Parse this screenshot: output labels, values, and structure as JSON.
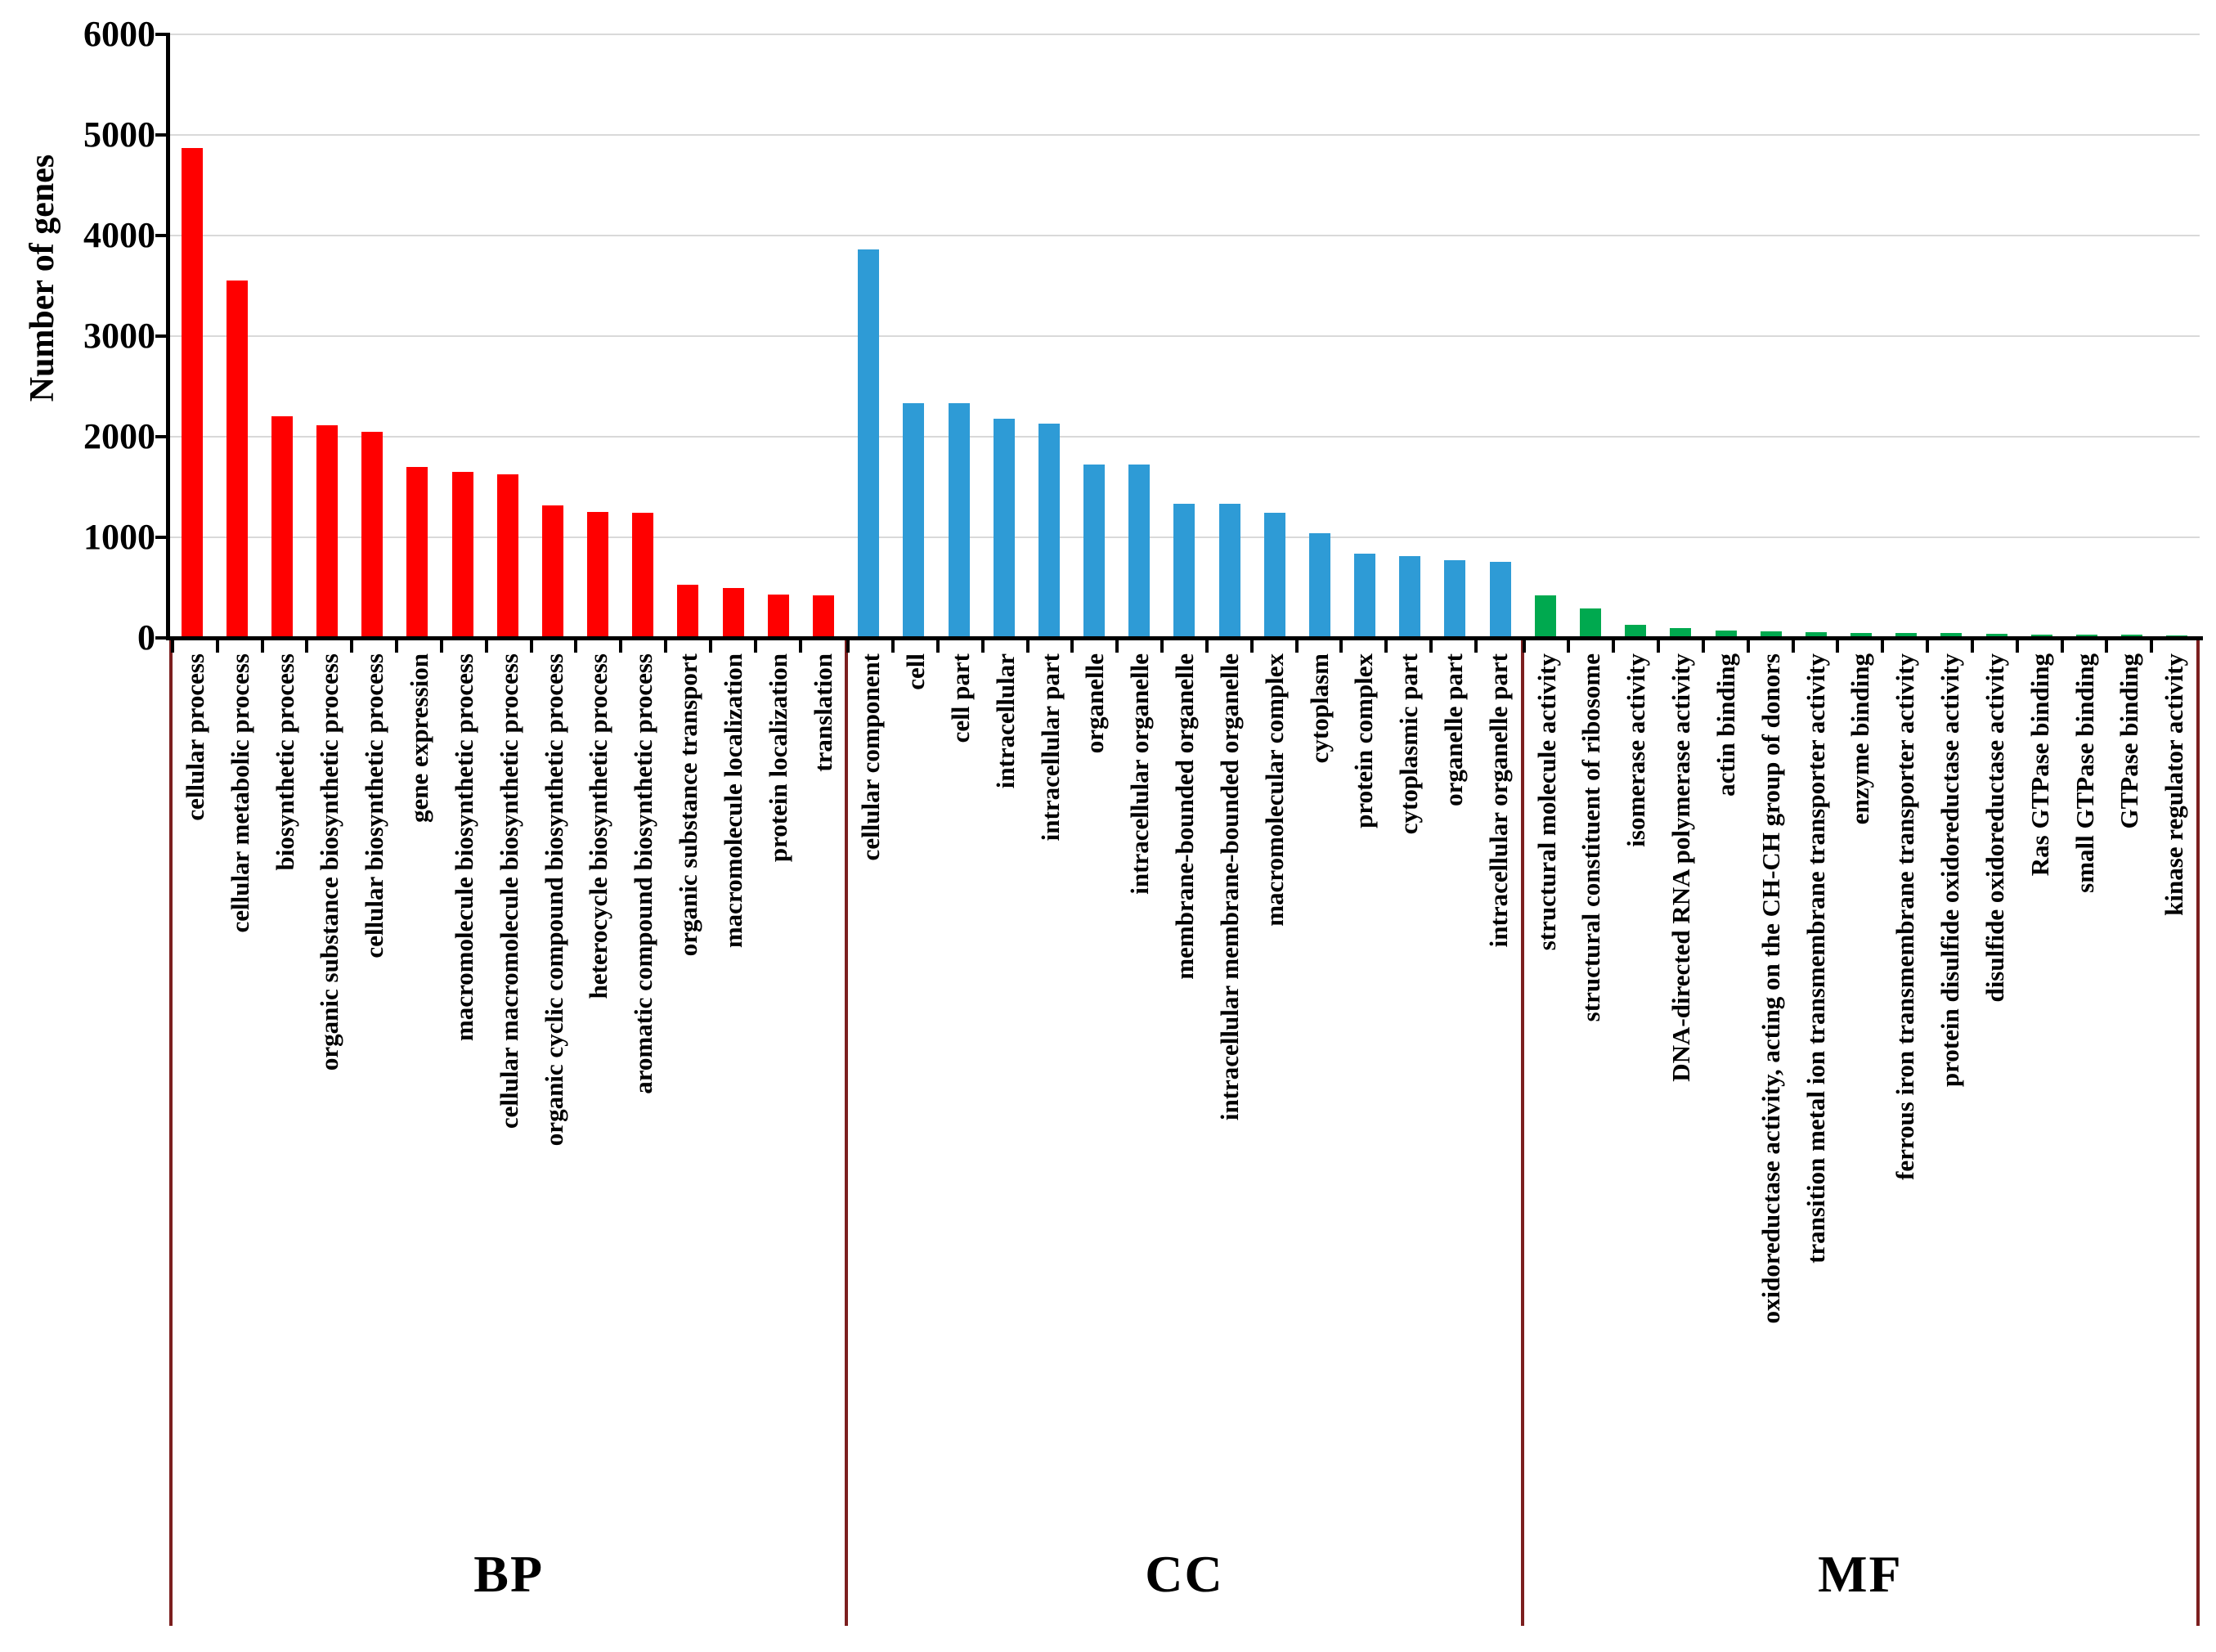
{
  "y_axis": {
    "label": "Number of genes",
    "ticks": [
      "6000",
      "5000",
      "4000",
      "3000",
      "2000",
      "1000",
      "0"
    ]
  },
  "chart_data": {
    "type": "bar",
    "title": "",
    "xlabel": "",
    "ylabel": "Number of genes",
    "ylim": [
      0,
      6000
    ],
    "grid": "horizontal",
    "legend": "none",
    "divider_color": "#7c1f1f",
    "gridline_color": "#d9d9d9",
    "groups": [
      {
        "name": "BP",
        "color": "#ff0000",
        "bars": [
          {
            "label": "cellular process",
            "value": 4870
          },
          {
            "label": "cellular metabolic process",
            "value": 3550
          },
          {
            "label": "biosynthetic process",
            "value": 2200
          },
          {
            "label": "organic substance biosynthetic process",
            "value": 2110
          },
          {
            "label": "cellular biosynthetic process",
            "value": 2050
          },
          {
            "label": "gene expression",
            "value": 1700
          },
          {
            "label": "macromolecule biosynthetic process",
            "value": 1650
          },
          {
            "label": "cellular macromolecule biosynthetic process",
            "value": 1630
          },
          {
            "label": "organic cyclic compound biosynthetic process",
            "value": 1320
          },
          {
            "label": "heterocycle biosynthetic process",
            "value": 1250
          },
          {
            "label": "aromatic compound biosynthetic process",
            "value": 1240
          },
          {
            "label": "organic substance transport",
            "value": 530
          },
          {
            "label": "macromolecule localization",
            "value": 500
          },
          {
            "label": "protein localization",
            "value": 430
          },
          {
            "label": "translation",
            "value": 420
          }
        ]
      },
      {
        "name": "CC",
        "color": "#2e9bd6",
        "bars": [
          {
            "label": "cellular component",
            "value": 3860
          },
          {
            "label": "cell",
            "value": 2330
          },
          {
            "label": "cell part",
            "value": 2330
          },
          {
            "label": "intracellular",
            "value": 2180
          },
          {
            "label": "intracellular part",
            "value": 2130
          },
          {
            "label": "organelle",
            "value": 1720
          },
          {
            "label": "intracellular organelle",
            "value": 1720
          },
          {
            "label": "membrane-bounded organelle",
            "value": 1330
          },
          {
            "label": "intracellular membrane-bounded organelle",
            "value": 1330
          },
          {
            "label": "macromolecular complex",
            "value": 1240
          },
          {
            "label": "cytoplasm",
            "value": 1040
          },
          {
            "label": "protein complex",
            "value": 840
          },
          {
            "label": "cytoplasmic part",
            "value": 810
          },
          {
            "label": "organelle part",
            "value": 770
          },
          {
            "label": "intracellular organelle part",
            "value": 760
          }
        ]
      },
      {
        "name": "MF",
        "color": "#00a94f",
        "bars": [
          {
            "label": "structural molecule activity",
            "value": 420
          },
          {
            "label": "structural constituent of ribosome",
            "value": 290
          },
          {
            "label": "isomerase activity",
            "value": 130
          },
          {
            "label": "DNA-directed RNA polymerase activity",
            "value": 100
          },
          {
            "label": "actin binding",
            "value": 70
          },
          {
            "label": "oxidoreductase activity, acting on the CH-CH group of donors",
            "value": 65
          },
          {
            "label": "transition metal ion transmembrane transporter activity",
            "value": 58
          },
          {
            "label": "enzyme binding",
            "value": 50
          },
          {
            "label": "ferrous iron transmembrane transporter activity",
            "value": 45
          },
          {
            "label": "protein disulfide oxidoreductase activity",
            "value": 45
          },
          {
            "label": "disulfide oxidoreductase activity",
            "value": 40
          },
          {
            "label": "Ras GTPase binding",
            "value": 35
          },
          {
            "label": "small GTPase binding",
            "value": 33
          },
          {
            "label": "GTPase binding",
            "value": 30
          },
          {
            "label": "kinase regulator activity",
            "value": 25
          }
        ]
      }
    ]
  }
}
